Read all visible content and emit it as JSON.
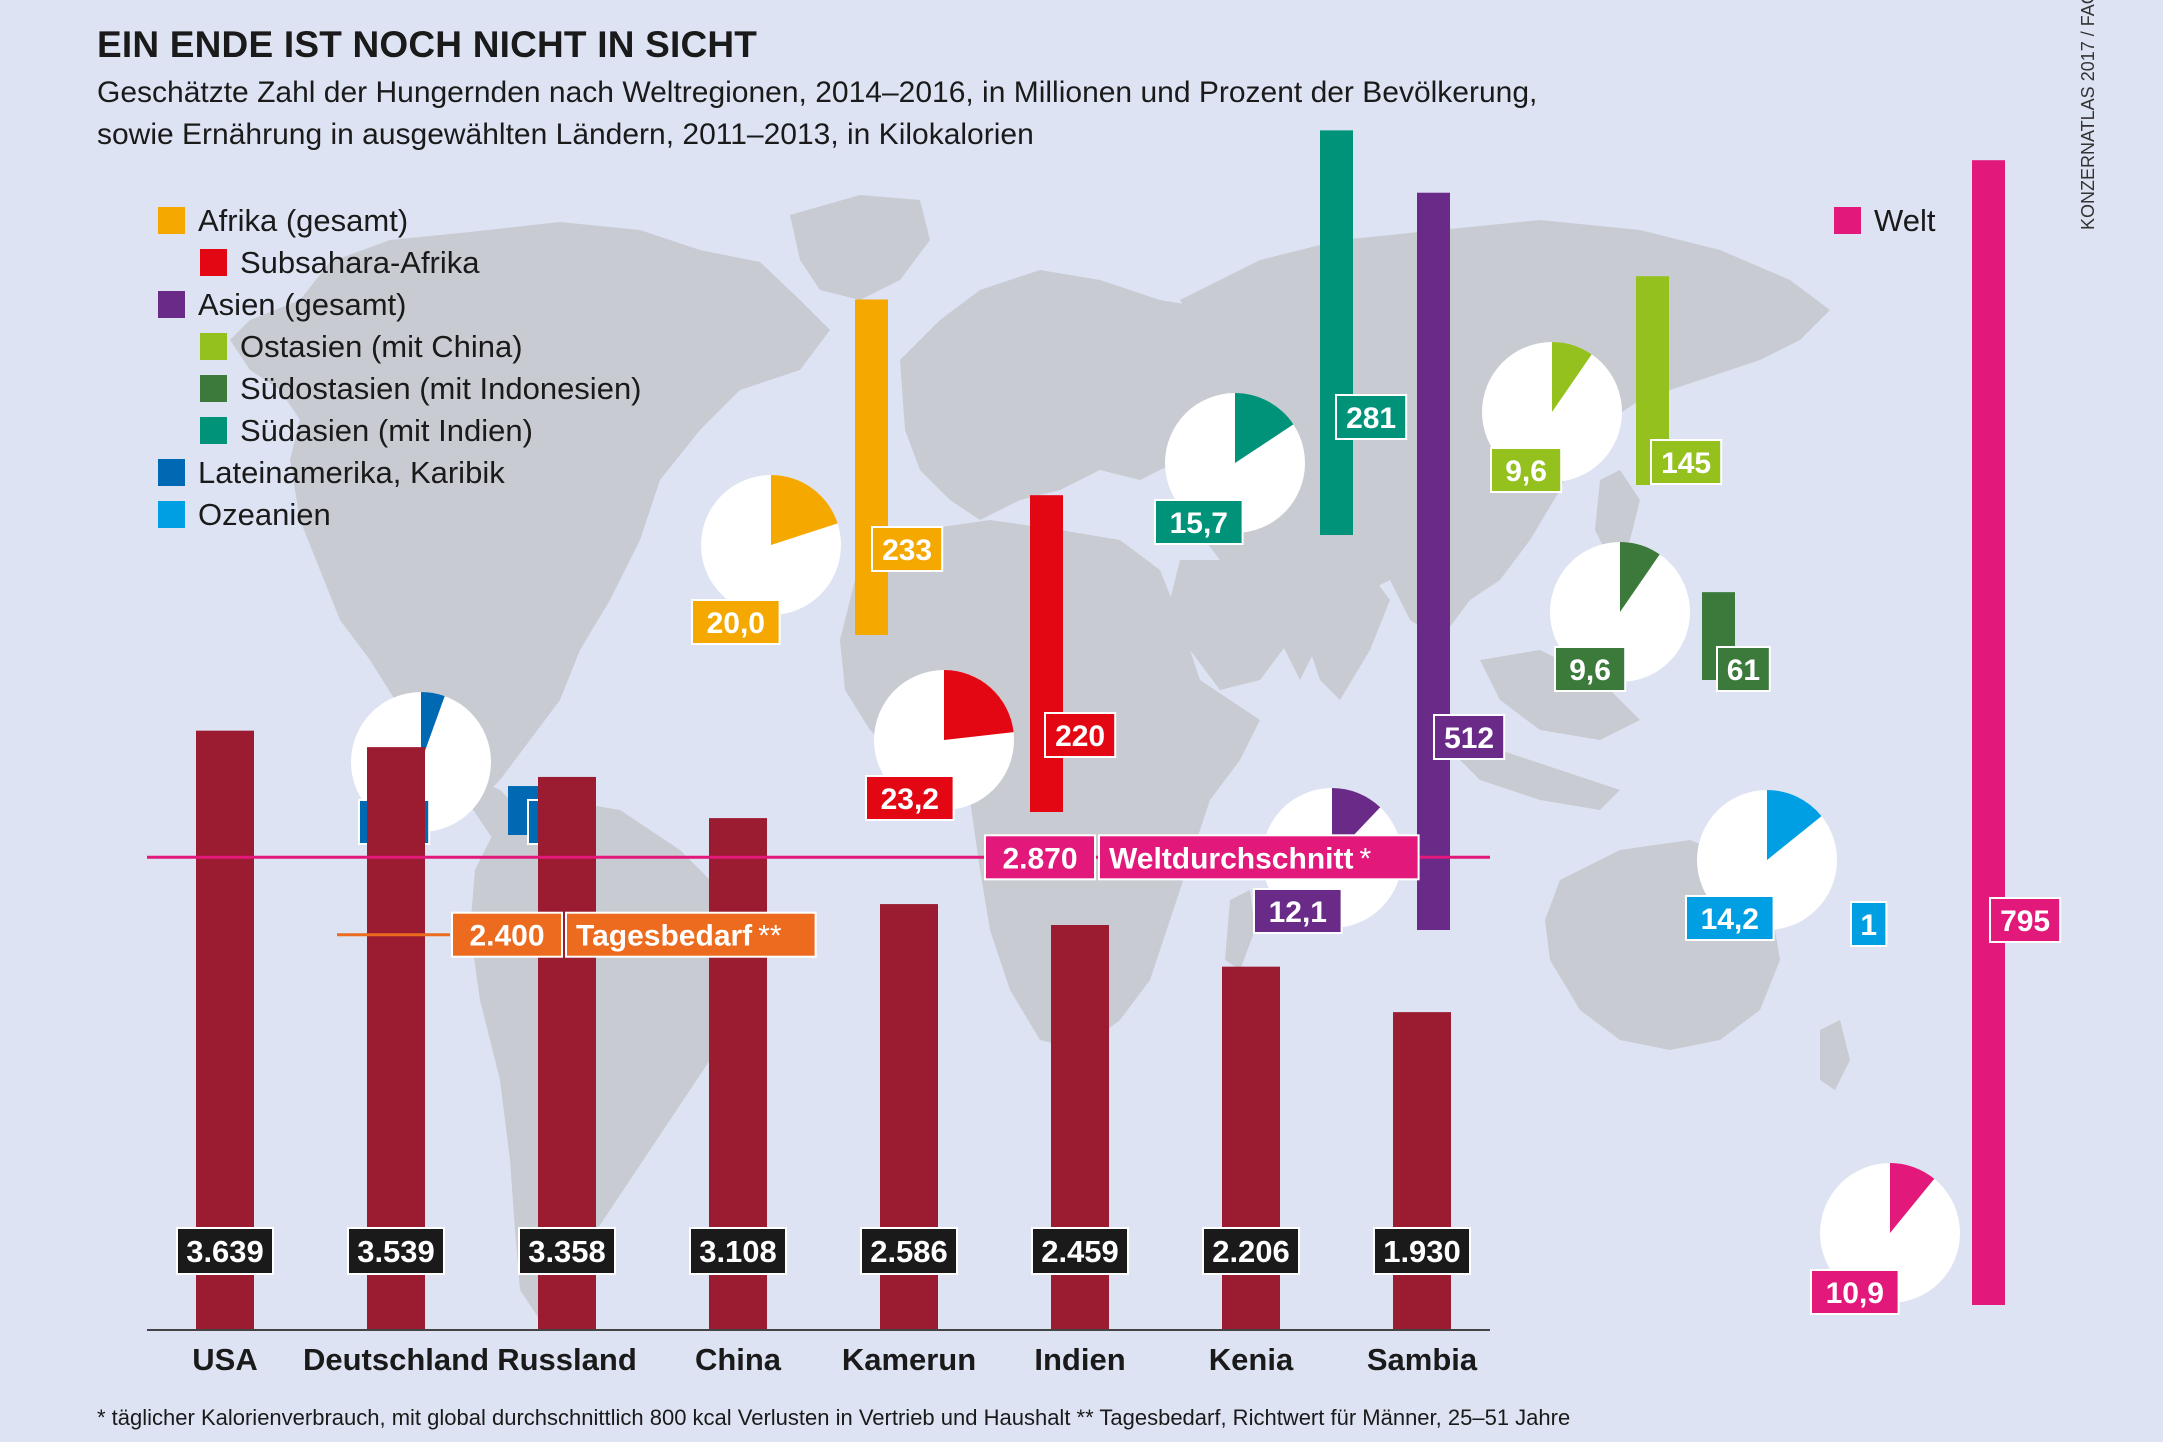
{
  "header": {
    "title": "EIN ENDE IST NOCH NICHT IN SICHT",
    "subtitle_line1": "Geschätzte Zahl der Hungernden nach Weltregionen, 2014–2016, in Millionen und Prozent der Bevölkerung,",
    "subtitle_line2": "sowie Ernährung in ausgewählten Ländern, 2011–2013, in Kilokalorien",
    "source": "KONZERNATLAS 2017 / FAO"
  },
  "legend": {
    "items": [
      {
        "label": "Afrika (gesamt)",
        "color": "#f5a800",
        "sub": false
      },
      {
        "label": "Subsahara-Afrika",
        "color": "#e30613",
        "sub": true
      },
      {
        "label": "Asien (gesamt)",
        "color": "#6a2a87",
        "sub": false
      },
      {
        "label": "Ostasien (mit China)",
        "color": "#95c11f",
        "sub": true
      },
      {
        "label": "Südostasien (mit Indonesien)",
        "color": "#3b7a3a",
        "sub": true
      },
      {
        "label": "Südasien (mit Indien)",
        "color": "#00937a",
        "sub": true
      },
      {
        "label": "Lateinamerika, Karibik",
        "color": "#0069b4",
        "sub": false
      },
      {
        "label": "Ozeanien",
        "color": "#009fe3",
        "sub": false
      }
    ],
    "welt_label": "Welt",
    "welt_color": "#e2197a"
  },
  "chart_data": [
    {
      "type": "bar",
      "description_of_encoding": "vertical bars = undernourished people in millions; pie = share of population in percent",
      "regions": [
        {
          "name": "Afrika (gesamt)",
          "millions": 233,
          "percent": 20.0,
          "millions_label": "233",
          "percent_label": "20,0",
          "color": "#f5a800"
        },
        {
          "name": "Subsahara-Afrika",
          "millions": 220,
          "percent": 23.2,
          "millions_label": "220",
          "percent_label": "23,2",
          "color": "#e30613"
        },
        {
          "name": "Asien (gesamt)",
          "millions": 512,
          "percent": 12.1,
          "millions_label": "512",
          "percent_label": "12,1",
          "color": "#6a2a87"
        },
        {
          "name": "Ostasien (mit China)",
          "millions": 145,
          "percent": 9.6,
          "millions_label": "145",
          "percent_label": "9,6",
          "color": "#95c11f"
        },
        {
          "name": "Südostasien (mit Indonesien)",
          "millions": 61,
          "percent": 9.6,
          "millions_label": "61",
          "percent_label": "9,6",
          "color": "#3b7a3a"
        },
        {
          "name": "Südasien (mit Indien)",
          "millions": 281,
          "percent": 15.7,
          "millions_label": "281",
          "percent_label": "15,7",
          "color": "#00937a"
        },
        {
          "name": "Lateinamerika, Karibik",
          "millions": 34,
          "percent": 5.5,
          "millions_label": "34",
          "percent_label": "5,5",
          "color": "#0069b4"
        },
        {
          "name": "Ozeanien",
          "millions": 1,
          "percent": 14.2,
          "millions_label": "1",
          "percent_label": "14,2",
          "color": "#009fe3"
        },
        {
          "name": "Welt",
          "millions": 795,
          "percent": 10.9,
          "millions_label": "795",
          "percent_label": "10,9",
          "color": "#e2197a"
        }
      ]
    },
    {
      "type": "bar",
      "unit": "kcal",
      "categories": [
        "USA",
        "Deutschland",
        "Russland",
        "China",
        "Kamerun",
        "Indien",
        "Kenia",
        "Sambia"
      ],
      "values": [
        3639,
        3539,
        3358,
        3108,
        2586,
        2459,
        2206,
        1930
      ],
      "value_labels": [
        "3.639",
        "3.539",
        "3.358",
        "3.108",
        "2.586",
        "2.459",
        "2.206",
        "1.930"
      ],
      "bar_color": "#9b1b30",
      "reference_lines": [
        {
          "value": 2870,
          "value_label": "2.870",
          "label": "Weltdurchschnitt",
          "mark": "*",
          "color": "#e2197a"
        },
        {
          "value": 2400,
          "value_label": "2.400",
          "label": "Tagesbedarf",
          "mark": "**",
          "color": "#ec6b1f"
        }
      ]
    }
  ],
  "footnote": "* täglicher Kalorienverbrauch, mit global durchschnittlich 800 kcal Verlusten in Vertrieb und Haushalt    ** Tagesbedarf, Richtwert für Männer, 25–51 Jahre"
}
